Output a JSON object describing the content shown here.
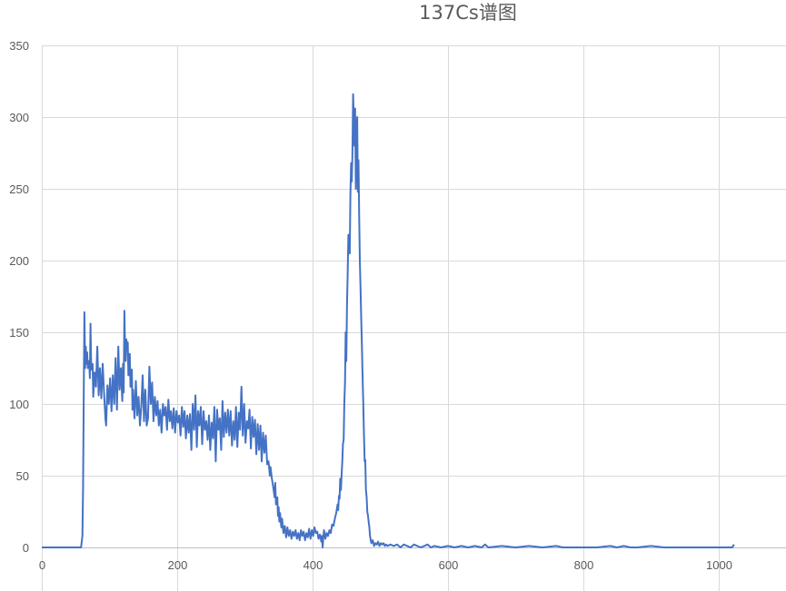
{
  "chart_data": {
    "type": "line",
    "title": "137Cs谱图",
    "xlabel": "",
    "ylabel": "",
    "xlim": [
      0,
      1050
    ],
    "ylim": [
      0,
      350
    ],
    "x_ticks": [
      0,
      200,
      400,
      600,
      800,
      1000
    ],
    "y_ticks": [
      0,
      50,
      100,
      150,
      200,
      250,
      300,
      350
    ],
    "grid": true,
    "legend": "none",
    "series": [
      {
        "color": "#4472C4",
        "points": [
          [
            0,
            0
          ],
          [
            58,
            0
          ],
          [
            60,
            8
          ],
          [
            61,
            40
          ],
          [
            62,
            110
          ],
          [
            63,
            164
          ],
          [
            64,
            125
          ],
          [
            65,
            140
          ],
          [
            66,
            128
          ],
          [
            67,
            136
          ],
          [
            68,
            125
          ],
          [
            70,
            130
          ],
          [
            71,
            118
          ],
          [
            72,
            156
          ],
          [
            73,
            124
          ],
          [
            75,
            128
          ],
          [
            76,
            105
          ],
          [
            78,
            122
          ],
          [
            80,
            112
          ],
          [
            82,
            140
          ],
          [
            84,
            106
          ],
          [
            86,
            125
          ],
          [
            88,
            104
          ],
          [
            90,
            128
          ],
          [
            92,
            108
          ],
          [
            94,
            90
          ],
          [
            95,
            85
          ],
          [
            97,
            113
          ],
          [
            99,
            100
          ],
          [
            101,
            118
          ],
          [
            103,
            95
          ],
          [
            105,
            120
          ],
          [
            107,
            100
          ],
          [
            109,
            132
          ],
          [
            111,
            96
          ],
          [
            113,
            140
          ],
          [
            115,
            110
          ],
          [
            117,
            125
          ],
          [
            119,
            102
          ],
          [
            120,
            128
          ],
          [
            121,
            108
          ],
          [
            122,
            165
          ],
          [
            123,
            140
          ],
          [
            124,
            130
          ],
          [
            125,
            145
          ],
          [
            126,
            138
          ],
          [
            127,
            143
          ],
          [
            128,
            120
          ],
          [
            130,
            135
          ],
          [
            131,
            112
          ],
          [
            133,
            124
          ],
          [
            134,
            96
          ],
          [
            135,
            110
          ],
          [
            137,
            90
          ],
          [
            139,
            116
          ],
          [
            141,
            92
          ],
          [
            143,
            105
          ],
          [
            145,
            85
          ],
          [
            147,
            98
          ],
          [
            149,
            120
          ],
          [
            151,
            88
          ],
          [
            153,
            110
          ],
          [
            155,
            85
          ],
          [
            157,
            90
          ],
          [
            159,
            126
          ],
          [
            161,
            100
          ],
          [
            163,
            115
          ],
          [
            165,
            88
          ],
          [
            167,
            105
          ],
          [
            169,
            92
          ],
          [
            171,
            102
          ],
          [
            173,
            85
          ],
          [
            175,
            96
          ],
          [
            177,
            80
          ],
          [
            179,
            100
          ],
          [
            181,
            92
          ],
          [
            183,
            98
          ],
          [
            185,
            82
          ],
          [
            187,
            103
          ],
          [
            189,
            88
          ],
          [
            191,
            95
          ],
          [
            193,
            83
          ],
          [
            195,
            97
          ],
          [
            197,
            80
          ],
          [
            199,
            95
          ],
          [
            201,
            87
          ],
          [
            203,
            92
          ],
          [
            205,
            78
          ],
          [
            207,
            98
          ],
          [
            209,
            84
          ],
          [
            211,
            95
          ],
          [
            213,
            76
          ],
          [
            215,
            92
          ],
          [
            217,
            80
          ],
          [
            219,
            93
          ],
          [
            221,
            68
          ],
          [
            223,
            100
          ],
          [
            225,
            82
          ],
          [
            227,
            106
          ],
          [
            229,
            70
          ],
          [
            231,
            95
          ],
          [
            233,
            85
          ],
          [
            235,
            98
          ],
          [
            237,
            72
          ],
          [
            239,
            95
          ],
          [
            241,
            82
          ],
          [
            243,
            88
          ],
          [
            245,
            75
          ],
          [
            247,
            92
          ],
          [
            249,
            68
          ],
          [
            251,
            87
          ],
          [
            253,
            76
          ],
          [
            255,
            98
          ],
          [
            257,
            60
          ],
          [
            259,
            96
          ],
          [
            261,
            82
          ],
          [
            263,
            90
          ],
          [
            265,
            68
          ],
          [
            267,
            102
          ],
          [
            269,
            77
          ],
          [
            271,
            94
          ],
          [
            273,
            80
          ],
          [
            275,
            96
          ],
          [
            277,
            78
          ],
          [
            279,
            95
          ],
          [
            281,
            71
          ],
          [
            283,
            88
          ],
          [
            285,
            75
          ],
          [
            287,
            98
          ],
          [
            289,
            70
          ],
          [
            291,
            94
          ],
          [
            293,
            82
          ],
          [
            295,
            112
          ],
          [
            297,
            78
          ],
          [
            299,
            100
          ],
          [
            301,
            73
          ],
          [
            303,
            88
          ],
          [
            305,
            83
          ],
          [
            307,
            96
          ],
          [
            309,
            69
          ],
          [
            311,
            91
          ],
          [
            313,
            77
          ],
          [
            315,
            89
          ],
          [
            317,
            65
          ],
          [
            319,
            86
          ],
          [
            321,
            68
          ],
          [
            323,
            85
          ],
          [
            325,
            60
          ],
          [
            327,
            80
          ],
          [
            329,
            66
          ],
          [
            331,
            78
          ],
          [
            333,
            58
          ],
          [
            335,
            60
          ],
          [
            337,
            50
          ],
          [
            338,
            56
          ],
          [
            340,
            48
          ],
          [
            342,
            42
          ],
          [
            344,
            35
          ],
          [
            345,
            45
          ],
          [
            346,
            30
          ],
          [
            348,
            35
          ],
          [
            349,
            22
          ],
          [
            350,
            28
          ],
          [
            351,
            18
          ],
          [
            352,
            24
          ],
          [
            354,
            14
          ],
          [
            355,
            20
          ],
          [
            357,
            10
          ],
          [
            359,
            15
          ],
          [
            361,
            7
          ],
          [
            363,
            14
          ],
          [
            365,
            8
          ],
          [
            367,
            12
          ],
          [
            369,
            6
          ],
          [
            371,
            11
          ],
          [
            373,
            8
          ],
          [
            375,
            12
          ],
          [
            377,
            6
          ],
          [
            379,
            10
          ],
          [
            381,
            5
          ],
          [
            383,
            12
          ],
          [
            385,
            8
          ],
          [
            387,
            11
          ],
          [
            389,
            5
          ],
          [
            391,
            10
          ],
          [
            393,
            7
          ],
          [
            395,
            13
          ],
          [
            397,
            6
          ],
          [
            399,
            12
          ],
          [
            401,
            8
          ],
          [
            403,
            14
          ],
          [
            405,
            10
          ],
          [
            407,
            11
          ],
          [
            409,
            6
          ],
          [
            411,
            9
          ],
          [
            413,
            4
          ],
          [
            414,
            8
          ],
          [
            415,
            0
          ],
          [
            416,
            7
          ],
          [
            417,
            12
          ],
          [
            419,
            6
          ],
          [
            421,
            10
          ],
          [
            423,
            8
          ],
          [
            425,
            12
          ],
          [
            427,
            10
          ],
          [
            429,
            16
          ],
          [
            431,
            15
          ],
          [
            433,
            20
          ],
          [
            435,
            24
          ],
          [
            437,
            30
          ],
          [
            438,
            26
          ],
          [
            439,
            36
          ],
          [
            440,
            34
          ],
          [
            441,
            48
          ],
          [
            442,
            40
          ],
          [
            443,
            50
          ],
          [
            444,
            60
          ],
          [
            445,
            72
          ],
          [
            446,
            75
          ],
          [
            447,
            100
          ],
          [
            448,
            115
          ],
          [
            449,
            150
          ],
          [
            450,
            130
          ],
          [
            451,
            170
          ],
          [
            452,
            190
          ],
          [
            453,
            218
          ],
          [
            454,
            210
          ],
          [
            455,
            205
          ],
          [
            456,
            245
          ],
          [
            457,
            268
          ],
          [
            458,
            255
          ],
          [
            459,
            272
          ],
          [
            460,
            316
          ],
          [
            461,
            300
          ],
          [
            462,
            280
          ],
          [
            463,
            306
          ],
          [
            464,
            250
          ],
          [
            465,
            290
          ],
          [
            466,
            300
          ],
          [
            467,
            248
          ],
          [
            468,
            270
          ],
          [
            469,
            230
          ],
          [
            470,
            200
          ],
          [
            471,
            180
          ],
          [
            472,
            160
          ],
          [
            473,
            140
          ],
          [
            474,
            120
          ],
          [
            475,
            100
          ],
          [
            476,
            80
          ],
          [
            477,
            60
          ],
          [
            478,
            61
          ],
          [
            479,
            40
          ],
          [
            480,
            35
          ],
          [
            481,
            25
          ],
          [
            482,
            22
          ],
          [
            483,
            18
          ],
          [
            484,
            14
          ],
          [
            485,
            8
          ],
          [
            486,
            5
          ],
          [
            487,
            3
          ],
          [
            489,
            5
          ],
          [
            491,
            1
          ],
          [
            493,
            3
          ],
          [
            495,
            2
          ],
          [
            497,
            4
          ],
          [
            499,
            1
          ],
          [
            501,
            3
          ],
          [
            503,
            2
          ],
          [
            505,
            3
          ],
          [
            507,
            1
          ],
          [
            509,
            2
          ],
          [
            511,
            1
          ],
          [
            515,
            2
          ],
          [
            520,
            1
          ],
          [
            525,
            2
          ],
          [
            530,
            0
          ],
          [
            535,
            2
          ],
          [
            540,
            1
          ],
          [
            545,
            0
          ],
          [
            550,
            2
          ],
          [
            555,
            1
          ],
          [
            560,
            0
          ],
          [
            565,
            1
          ],
          [
            570,
            2
          ],
          [
            575,
            0
          ],
          [
            580,
            1
          ],
          [
            590,
            0
          ],
          [
            600,
            1
          ],
          [
            610,
            0
          ],
          [
            620,
            1
          ],
          [
            630,
            0
          ],
          [
            640,
            1
          ],
          [
            650,
            0
          ],
          [
            655,
            2
          ],
          [
            660,
            0
          ],
          [
            680,
            1
          ],
          [
            700,
            0
          ],
          [
            720,
            1
          ],
          [
            740,
            0
          ],
          [
            760,
            1
          ],
          [
            770,
            0
          ],
          [
            780,
            0
          ],
          [
            800,
            0
          ],
          [
            820,
            0
          ],
          [
            840,
            1
          ],
          [
            850,
            0
          ],
          [
            860,
            1
          ],
          [
            870,
            0
          ],
          [
            880,
            0
          ],
          [
            900,
            1
          ],
          [
            920,
            0
          ],
          [
            940,
            0
          ],
          [
            960,
            0
          ],
          [
            980,
            0
          ],
          [
            1000,
            0
          ],
          [
            1020,
            0
          ],
          [
            1023,
            2
          ]
        ]
      }
    ]
  }
}
